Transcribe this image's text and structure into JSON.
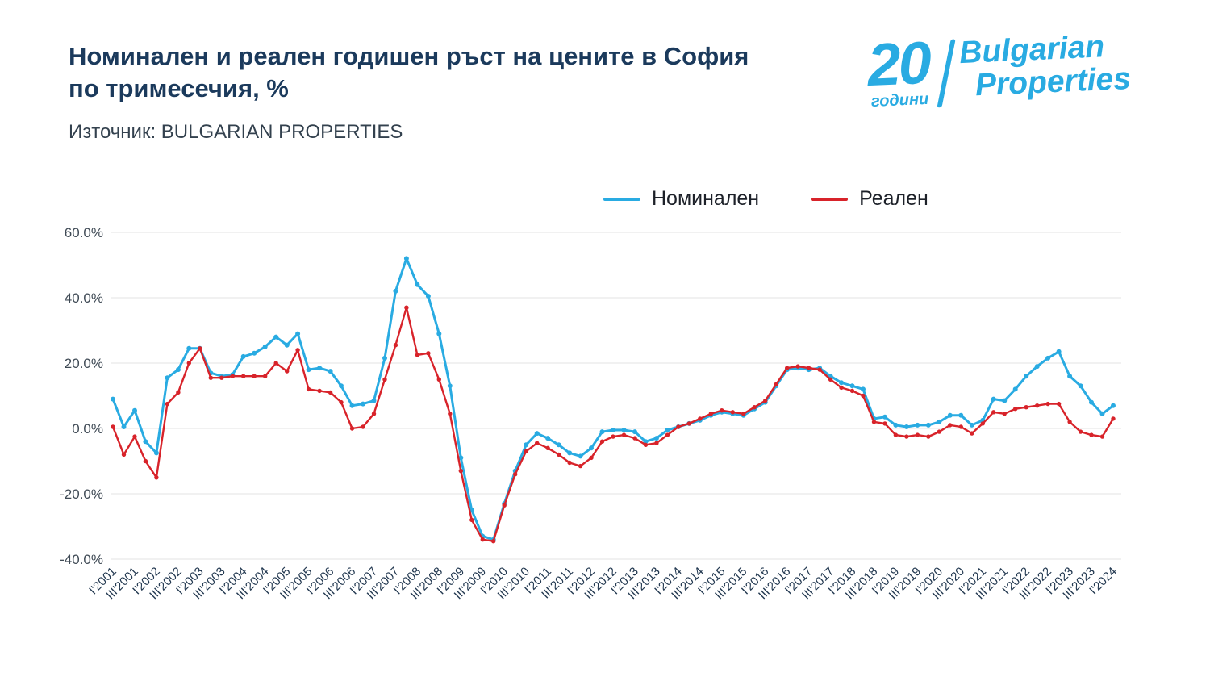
{
  "header": {
    "title_line1": "Номинален и реален годишен ръст на цените в София",
    "title_line2": "по тримесечия, %",
    "source": "Източник: BULGARIAN PROPERTIES"
  },
  "logo": {
    "number": "20",
    "years_label": "години",
    "brand_line1": "Bulgarian",
    "brand_line2": "Properties",
    "color": "#29abe2"
  },
  "chart_data": {
    "type": "line",
    "title": "Номинален и реален годишен ръст на цените в София по тримесечия, %",
    "xlabel": "",
    "ylabel": "",
    "ylim": [
      -40,
      60
    ],
    "grid": "horizontal",
    "legend_position": "top",
    "x_label_step": 2,
    "x_tick_labels": [
      "I'2001",
      "III'2001",
      "I'2002",
      "III'2002",
      "I'2003",
      "III'2003",
      "I'2004",
      "III'2004",
      "I'2005",
      "III'2005",
      "I'2006",
      "III'2006",
      "I'2007",
      "III'2007",
      "I'2008",
      "III'2008",
      "I'2009",
      "III'2009",
      "I'2010",
      "III'2010",
      "I'2011",
      "III'2011",
      "I'2012",
      "III'2012",
      "I'2013",
      "III'2013",
      "I'2014",
      "III'2014",
      "I'2015",
      "III'2015",
      "I'2016",
      "III'2016",
      "I'2017",
      "III'2017",
      "I'2018",
      "III'2018",
      "I'2019",
      "III'2019",
      "I'2020",
      "III'2020",
      "I'2021",
      "III'2021",
      "I'2022",
      "III'2022",
      "I'2023",
      "III'2023",
      "I'2024"
    ],
    "yticks": [
      {
        "value": 60,
        "label": "60.0%"
      },
      {
        "value": 40,
        "label": "40.0%"
      },
      {
        "value": 20,
        "label": "20.0%"
      },
      {
        "value": 0,
        "label": "0.0%"
      },
      {
        "value": -20,
        "label": "-20.0%"
      },
      {
        "value": -40,
        "label": "-40.0%"
      }
    ],
    "series": [
      {
        "name": "Номинален",
        "color": "#29abe2",
        "values": [
          9.0,
          0.5,
          5.5,
          -4.0,
          -7.5,
          15.5,
          18.0,
          24.5,
          24.5,
          17.0,
          16.0,
          16.5,
          22.0,
          23.0,
          25.0,
          28.0,
          25.5,
          29.0,
          18.0,
          18.5,
          17.5,
          13.0,
          7.0,
          7.5,
          8.5,
          21.5,
          42.0,
          52.0,
          44.0,
          40.5,
          29.0,
          13.0,
          -9.0,
          -25.0,
          -33.0,
          -34.0,
          -23.0,
          -13.0,
          -5.0,
          -1.5,
          -3.0,
          -5.0,
          -7.5,
          -8.5,
          -6.0,
          -1.0,
          -0.5,
          -0.5,
          -1.0,
          -4.0,
          -3.0,
          -0.5,
          0.5,
          1.5,
          2.5,
          4.0,
          5.0,
          4.5,
          4.0,
          6.0,
          8.0,
          13.0,
          18.0,
          18.5,
          18.0,
          18.5,
          16.0,
          14.0,
          13.0,
          12.0,
          3.0,
          3.5,
          1.0,
          0.5,
          1.0,
          1.0,
          2.0,
          4.0,
          4.0,
          1.0,
          2.5,
          9.0,
          8.5,
          12.0,
          16.0,
          19.0,
          21.5,
          23.5,
          16.0,
          13.0,
          8.0,
          4.5,
          7.0
        ]
      },
      {
        "name": "Реален",
        "color": "#d8232a",
        "values": [
          0.5,
          -8.0,
          -2.5,
          -10.0,
          -15.0,
          7.5,
          11.0,
          20.0,
          24.5,
          15.5,
          15.5,
          16.0,
          16.0,
          16.0,
          16.0,
          20.0,
          17.5,
          24.0,
          12.0,
          11.5,
          11.0,
          8.0,
          0.0,
          0.5,
          4.5,
          15.0,
          25.5,
          37.0,
          22.5,
          23.0,
          15.0,
          4.5,
          -13.0,
          -28.0,
          -34.0,
          -34.5,
          -23.5,
          -14.0,
          -7.0,
          -4.5,
          -6.0,
          -8.0,
          -10.5,
          -11.5,
          -9.0,
          -4.0,
          -2.5,
          -2.0,
          -3.0,
          -5.0,
          -4.5,
          -2.0,
          0.5,
          1.5,
          3.0,
          4.5,
          5.5,
          5.0,
          4.5,
          6.5,
          8.5,
          13.5,
          18.5,
          19.0,
          18.5,
          18.0,
          15.0,
          12.5,
          11.5,
          10.0,
          2.0,
          1.5,
          -2.0,
          -2.5,
          -2.0,
          -2.5,
          -1.0,
          1.0,
          0.5,
          -1.5,
          1.5,
          5.0,
          4.5,
          6.0,
          6.5,
          7.0,
          7.5,
          7.5,
          2.0,
          -1.0,
          -2.0,
          -2.5,
          3.0
        ]
      }
    ]
  }
}
